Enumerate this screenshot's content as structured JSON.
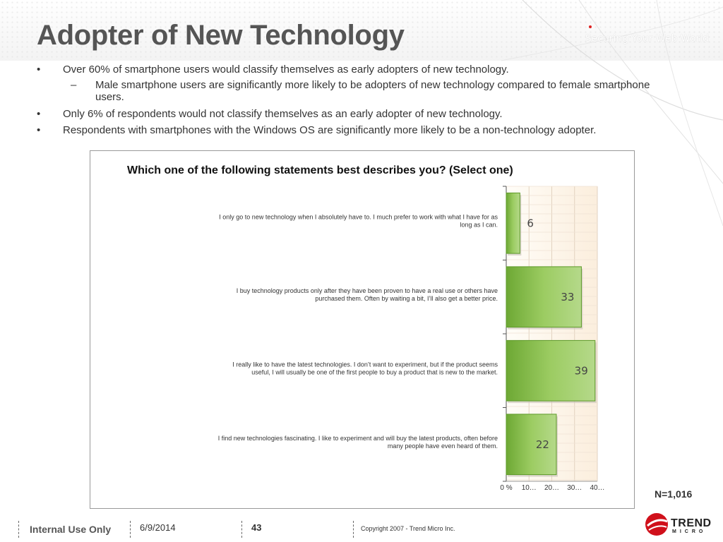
{
  "slide": {
    "title": "Adopter of New Technology",
    "tagline": "Securing Your Web World",
    "bullets": [
      {
        "mark": "•",
        "text": "Over 60% of smartphone users would classify themselves as early adopters of new technology."
      },
      {
        "mark": "–",
        "text": "Male smartphone users are significantly more likely to be adopters of new technology compared to female smartphone users."
      },
      {
        "mark": "•",
        "text": "Only 6% of respondents would not classify themselves as an early adopter of new technology."
      },
      {
        "mark": "•",
        "text": "Respondents with smartphones with the Windows OS are significantly more likely to be a non-technology adopter."
      }
    ],
    "n_label": "N=1,016"
  },
  "chart_data": {
    "type": "bar",
    "orientation": "horizontal",
    "title": "Which one of the following statements best describes you?  (Select one)",
    "categories": [
      [
        "I only go to new technology when I absolutely have to.  I much prefer to work with what I have for as",
        "long as I can."
      ],
      [
        "I buy technology products only after they have been proven to have a real use or others have",
        "purchased them.  Often by waiting a bit, I’ll also get a better price."
      ],
      [
        "I really like to have the latest technologies.  I don’t want to experiment, but if the product seems",
        "useful, I will usually be one of the first people to buy a product that is new to the market."
      ],
      [
        "I find new technologies fascinating.  I like to experiment and will buy the latest products, often before",
        "many people have even heard of them."
      ]
    ],
    "values": [
      6,
      33,
      39,
      22
    ],
    "x_ticks": [
      "0 %",
      "10…",
      "20…",
      "30…",
      "40…"
    ],
    "xlim": [
      0,
      40
    ],
    "grid": true,
    "colors": {
      "bar": "#8cc152",
      "bar_dark": "#5e9a2a",
      "bar_light": "#c6e39a"
    }
  },
  "footer": {
    "internal": "Internal Use Only",
    "date": "6/9/2014",
    "page": "43",
    "copyright": "Copyright 2007 - Trend Micro Inc.",
    "logo_name": "TREND",
    "logo_sub": "MICRO",
    "logo_icon": "trend-micro-ball-icon"
  }
}
